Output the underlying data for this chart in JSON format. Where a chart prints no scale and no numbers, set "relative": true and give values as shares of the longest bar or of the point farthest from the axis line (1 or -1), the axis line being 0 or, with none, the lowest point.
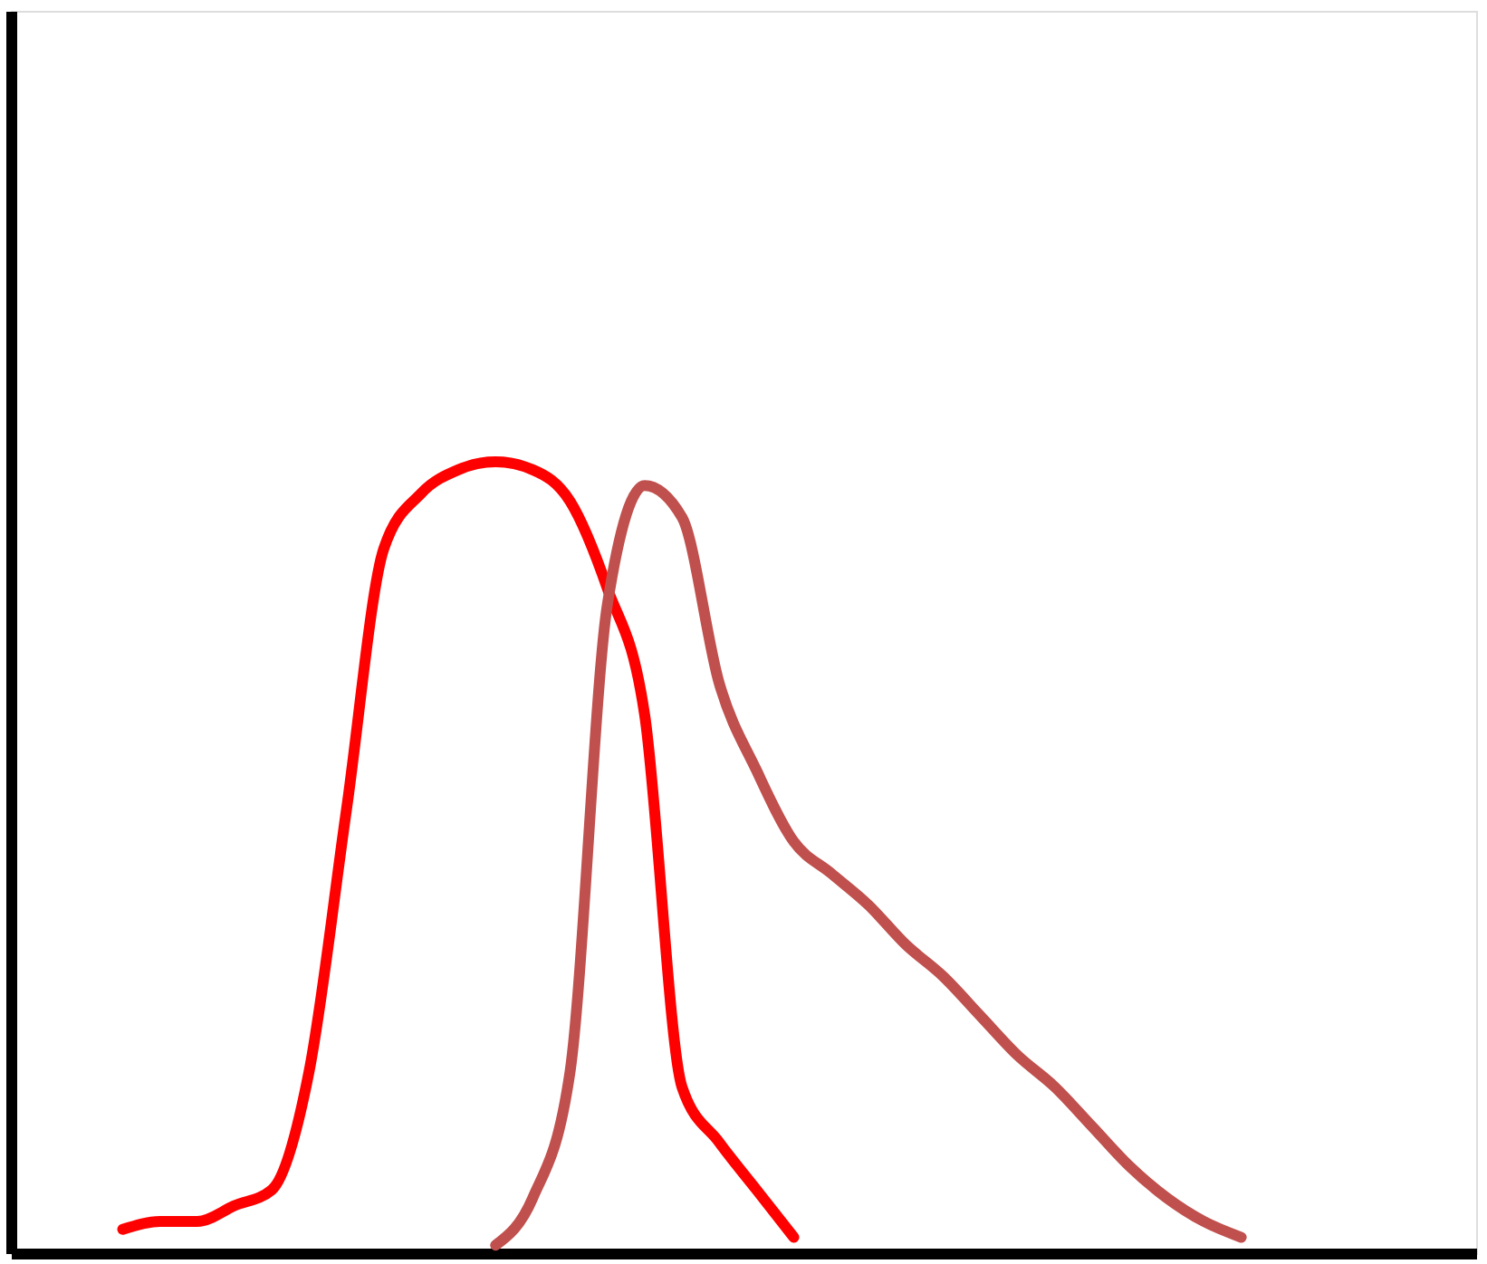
{
  "chart_data": {
    "type": "line",
    "relative": true,
    "categories": [
      null,
      null,
      null,
      null,
      null,
      null,
      null,
      null,
      null,
      null,
      null,
      null,
      null,
      null,
      null,
      null,
      null,
      null,
      null,
      null,
      null,
      null,
      null,
      null,
      null,
      null,
      null,
      null,
      null,
      null,
      null
    ],
    "series": [
      {
        "color": "#ff0000",
        "values": [
          0.03,
          0.04,
          0.04,
          0.06,
          0.08,
          0.23,
          0.56,
          0.89,
          0.96,
          0.99,
          1,
          0.99,
          0.95,
          0.84,
          0.68,
          0.21,
          0.14,
          0.08,
          0.02,
          null,
          null,
          null,
          null,
          null,
          null,
          null,
          null,
          null,
          null,
          null,
          null
        ]
      },
      {
        "color": "#c0504d",
        "values": [
          null,
          null,
          null,
          null,
          null,
          null,
          null,
          null,
          null,
          null,
          0.01,
          0.07,
          0.23,
          0.82,
          0.97,
          0.93,
          0.72,
          0.61,
          0.52,
          0.48,
          0.44,
          0.39,
          0.35,
          0.3,
          0.25,
          0.21,
          0.16,
          0.11,
          0.07,
          0.04,
          0.02
        ]
      }
    ]
  }
}
